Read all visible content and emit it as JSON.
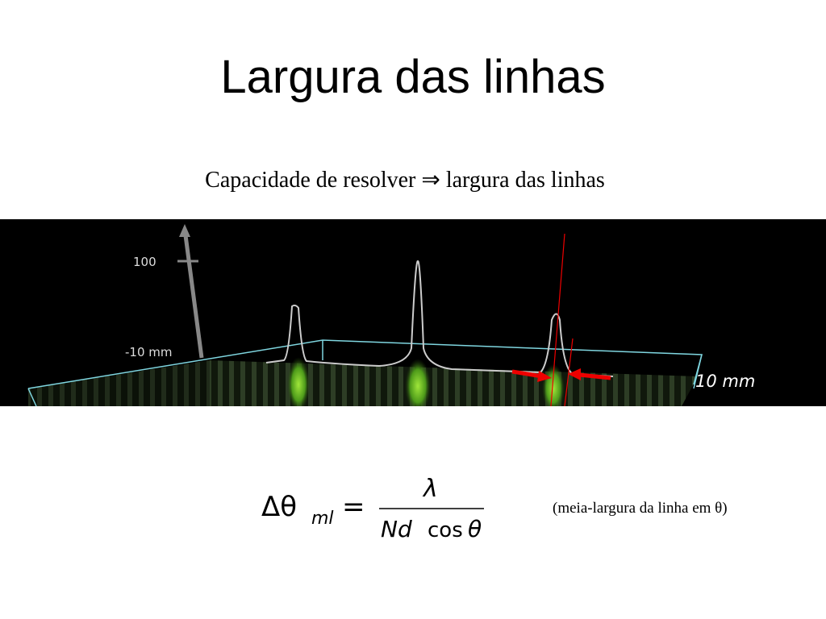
{
  "slide": {
    "title": "Largura das linhas",
    "subtitle": "Capacidade de resolver ⇒ largura das linhas",
    "figure": {
      "axis_top_label": "100",
      "axis_near_label": "-10 mm",
      "axis_right_label": "10 mm"
    },
    "formula": {
      "lhs": "Δθ",
      "lhs_sub": "ml",
      "equals": "=",
      "numerator": "λ",
      "denominator_italic": "Nd",
      "denominator_cos": "cos",
      "denominator_theta": "θ"
    },
    "note": "(meia-largura da linha em θ)"
  }
}
